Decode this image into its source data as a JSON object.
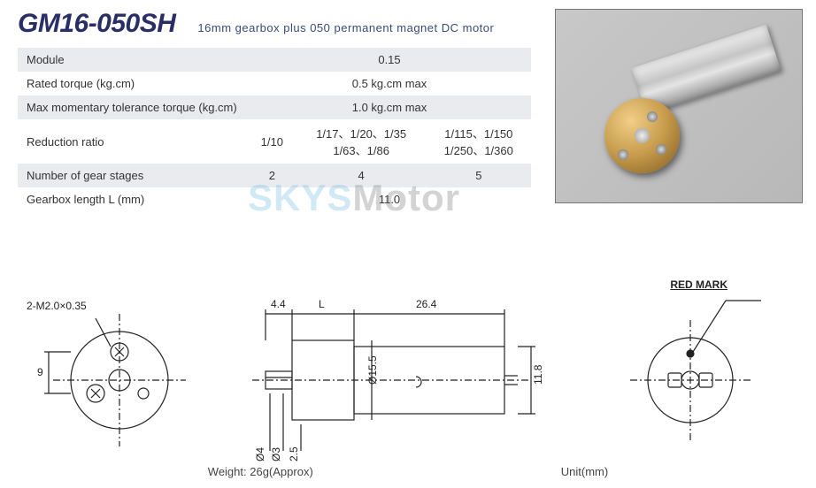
{
  "header": {
    "model": "GM16-050SH",
    "subtitle": "16mm gearbox plus 050 permanent magnet DC  motor"
  },
  "specs": {
    "rows": [
      {
        "label": "Module",
        "value": "0.15",
        "even": true,
        "span": 3
      },
      {
        "label": "Rated torque (kg.cm)",
        "value": "0.5 kg.cm max",
        "even": false,
        "span": 3
      },
      {
        "label": "Max momentary tolerance torque (kg.cm)",
        "value": "1.0 kg.cm max",
        "even": true,
        "span": 3
      },
      {
        "label": "Reduction ratio",
        "v1": "1/10",
        "v2": "1/17、1/20、1/35\n1/63、1/86",
        "v3": "1/115、1/150\n1/250、1/360",
        "even": false,
        "span": 1
      },
      {
        "label": "Number of gear stages",
        "v1": "2",
        "v2": "4",
        "v3": "5",
        "even": true,
        "span": 1
      },
      {
        "label": "Gearbox length  L (mm)",
        "value": "11.0",
        "even": false,
        "span": 3
      }
    ]
  },
  "watermark": {
    "left": "SKYS",
    "right": "Motor"
  },
  "drawing": {
    "front_label": "2-M2.0×0.35",
    "front_dim_v": "9",
    "side": {
      "d1": "4.4",
      "d2": "L",
      "d3": "26.4",
      "diam_body": "Ø15.5",
      "diam_shaft_1": "Ø4",
      "diam_shaft_2": "Ø3",
      "shaft_off": "2.5",
      "height": "11.8"
    },
    "rear_label": "RED MARK",
    "weight": "Weight: 26g(Approx)",
    "unit": "Unit(mm)"
  },
  "colors": {
    "heading": "#2a2e66",
    "row_even": "#eaebef",
    "watermark_blue": "rgba(90,175,220,0.28)"
  }
}
